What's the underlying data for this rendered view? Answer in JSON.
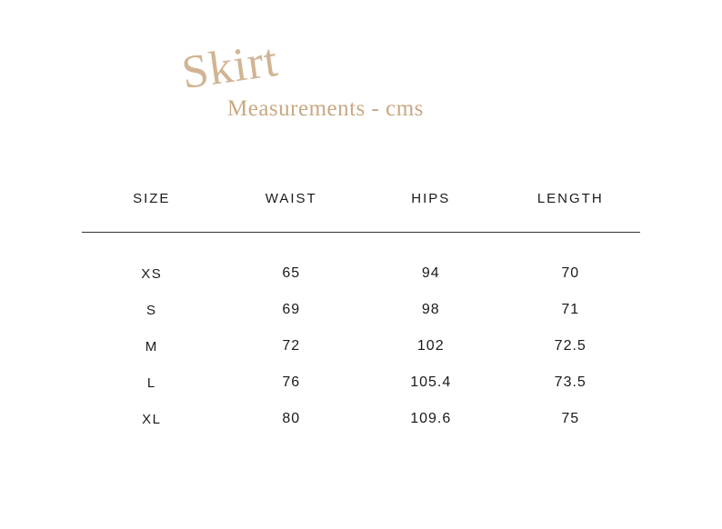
{
  "heading": {
    "script": "Skirt",
    "sub": "Measurements - cms"
  },
  "table": {
    "type": "table",
    "background_color": "#ffffff",
    "text_color": "#1a1a1a",
    "accent_color": "#c9a882",
    "rule_color": "#333333",
    "header_fontsize": 15,
    "body_fontsize": 16,
    "columns": [
      "SIZE",
      "WAIST",
      "HIPS",
      "LENGTH"
    ],
    "rows": [
      [
        "XS",
        "65",
        "94",
        "70"
      ],
      [
        "S",
        "69",
        "98",
        "71"
      ],
      [
        "M",
        "72",
        "102",
        "72.5"
      ],
      [
        "L",
        "76",
        "105.4",
        "73.5"
      ],
      [
        "XL",
        "80",
        "109.6",
        "75"
      ]
    ]
  }
}
